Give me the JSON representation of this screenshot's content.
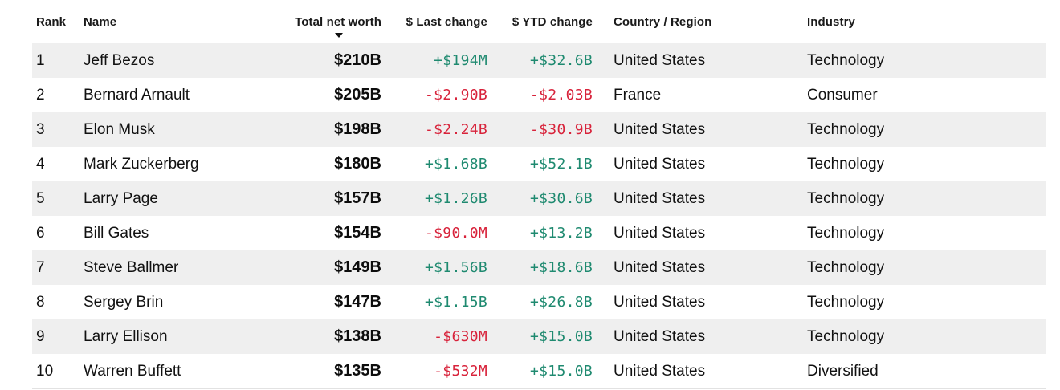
{
  "header": {
    "rank": "Rank",
    "name": "Name",
    "worth": "Total net worth",
    "last_change": "$ Last change",
    "ytd_change": "$ YTD change",
    "country": "Country / Region",
    "industry": "Industry"
  },
  "colors": {
    "positive": "#1f8a70",
    "negative": "#d8233b",
    "row_shade": "#efefef"
  },
  "sort": {
    "column": "worth",
    "direction": "descending",
    "icon": "sort-down-arrow-icon"
  },
  "rows": [
    {
      "rank": "1",
      "name": "Jeff Bezos",
      "worth": "$210B",
      "last": "+$194M",
      "ytd": "+$32.6B",
      "country": "United States",
      "industry": "Technology"
    },
    {
      "rank": "2",
      "name": "Bernard Arnault",
      "worth": "$205B",
      "last": "-$2.90B",
      "ytd": "-$2.03B",
      "country": "France",
      "industry": "Consumer"
    },
    {
      "rank": "3",
      "name": "Elon Musk",
      "worth": "$198B",
      "last": "-$2.24B",
      "ytd": "-$30.9B",
      "country": "United States",
      "industry": "Technology"
    },
    {
      "rank": "4",
      "name": "Mark Zuckerberg",
      "worth": "$180B",
      "last": "+$1.68B",
      "ytd": "+$52.1B",
      "country": "United States",
      "industry": "Technology"
    },
    {
      "rank": "5",
      "name": "Larry Page",
      "worth": "$157B",
      "last": "+$1.26B",
      "ytd": "+$30.6B",
      "country": "United States",
      "industry": "Technology"
    },
    {
      "rank": "6",
      "name": "Bill Gates",
      "worth": "$154B",
      "last": "-$90.0M",
      "ytd": "+$13.2B",
      "country": "United States",
      "industry": "Technology"
    },
    {
      "rank": "7",
      "name": "Steve Ballmer",
      "worth": "$149B",
      "last": "+$1.56B",
      "ytd": "+$18.6B",
      "country": "United States",
      "industry": "Technology"
    },
    {
      "rank": "8",
      "name": "Sergey Brin",
      "worth": "$147B",
      "last": "+$1.15B",
      "ytd": "+$26.8B",
      "country": "United States",
      "industry": "Technology"
    },
    {
      "rank": "9",
      "name": "Larry Ellison",
      "worth": "$138B",
      "last": "-$630M",
      "ytd": "+$15.0B",
      "country": "United States",
      "industry": "Technology"
    },
    {
      "rank": "10",
      "name": "Warren Buffett",
      "worth": "$135B",
      "last": "-$532M",
      "ytd": "+$15.0B",
      "country": "United States",
      "industry": "Diversified"
    }
  ]
}
